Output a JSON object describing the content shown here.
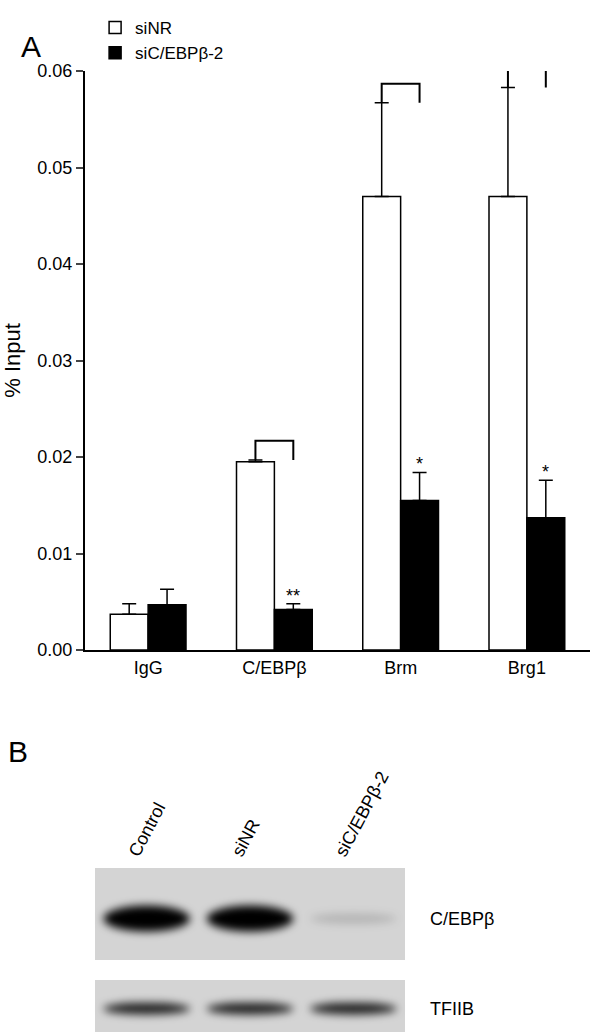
{
  "panel_labels": [
    "A",
    "B"
  ],
  "chart_data": {
    "type": "bar",
    "categories": [
      "IgG",
      "C/EBPβ",
      "Brm",
      "Brg1"
    ],
    "series": [
      {
        "name": "siNR",
        "color": "#ffffff",
        "values": [
          0.0037,
          0.0195,
          0.047,
          0.047
        ],
        "errors": [
          0.0011,
          0.0002,
          0.0097,
          0.0113
        ]
      },
      {
        "name": "siC/EBPβ-2",
        "color": "#000000",
        "values": [
          0.0047,
          0.0042,
          0.0155,
          0.0137
        ],
        "errors": [
          0.0016,
          0.0006,
          0.0029,
          0.0039
        ]
      }
    ],
    "y_label": "% Input",
    "ylim": [
      0,
      0.06
    ],
    "yticks": [
      {
        "value": 0,
        "label": "0.00"
      },
      0.01,
      0.02,
      0.03,
      0.04,
      0.05,
      0.06
    ],
    "grid": false,
    "legend": "top left",
    "significance": [
      {
        "category": "C/EBPβ",
        "label": "**"
      },
      {
        "category": "Brm",
        "label": "*"
      },
      {
        "category": "Brg1",
        "label": "*"
      }
    ]
  },
  "blot": {
    "lanes": [
      "Control",
      "siNR",
      "siC/EBPβ-2"
    ],
    "rows": [
      {
        "label": "C/EBPβ",
        "intensity": [
          1.0,
          1.0,
          0.15
        ]
      },
      {
        "label": "TFIIB",
        "intensity": [
          0.85,
          0.85,
          0.85
        ]
      }
    ]
  }
}
